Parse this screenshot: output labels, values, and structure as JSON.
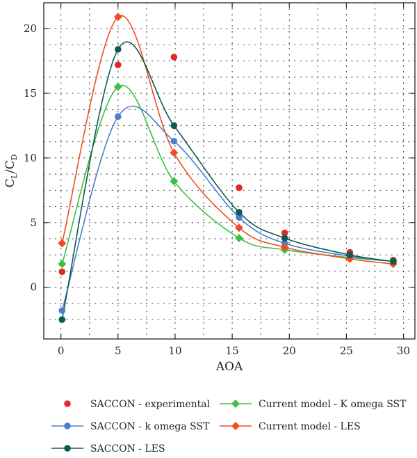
{
  "chart_data": {
    "type": "scatter",
    "xlabel": "AOA",
    "ylabel": {
      "main": "C",
      "sub1": "L",
      "sep": "/C",
      "sub2": "D"
    },
    "xlim": [
      -1.5,
      31
    ],
    "ylim": [
      -4,
      22
    ],
    "xticks": [
      0,
      5,
      10,
      15,
      20,
      25,
      30
    ],
    "yticks": [
      0,
      5,
      10,
      15,
      20
    ],
    "grid": "dotted",
    "legend": "bottom",
    "series": [
      {
        "name": "SACCON - experimental",
        "color": "#e02a2a",
        "marker": "circle",
        "line": false,
        "x": [
          0.1,
          5.0,
          9.9,
          15.6,
          19.6,
          25.3,
          29.1
        ],
        "y": [
          1.2,
          17.2,
          17.8,
          7.7,
          4.2,
          2.7,
          2.1
        ]
      },
      {
        "name": "Current model - K omega SST",
        "color": "#3fbf3f",
        "marker": "diamond",
        "line": true,
        "x": [
          0.1,
          5.0,
          9.9,
          15.6,
          19.6,
          25.3,
          29.1
        ],
        "y": [
          1.8,
          15.5,
          8.2,
          3.8,
          2.9,
          2.3,
          2.0
        ]
      },
      {
        "name": "SACCON - k omega SST",
        "color": "#4a7fd0",
        "marker": "circle",
        "line": true,
        "x": [
          0.1,
          5.0,
          9.9,
          15.6,
          19.6,
          25.3,
          29.1
        ],
        "y": [
          -1.8,
          13.2,
          11.3,
          5.4,
          3.4,
          2.4,
          2.0
        ]
      },
      {
        "name": "Current model - LES",
        "color": "#f04e1e",
        "marker": "diamond",
        "line": true,
        "x": [
          0.1,
          5.0,
          9.9,
          15.6,
          19.6,
          25.3,
          29.1
        ],
        "y": [
          3.4,
          20.9,
          10.4,
          4.6,
          3.1,
          2.2,
          1.8
        ]
      },
      {
        "name": "SACCON - LES",
        "color": "#0d5a52",
        "marker": "circle",
        "line": true,
        "x": [
          0.1,
          5.0,
          9.9,
          15.6,
          19.6,
          25.3,
          29.1
        ],
        "y": [
          -2.5,
          18.4,
          12.5,
          5.8,
          3.8,
          2.5,
          2.0
        ]
      }
    ]
  }
}
